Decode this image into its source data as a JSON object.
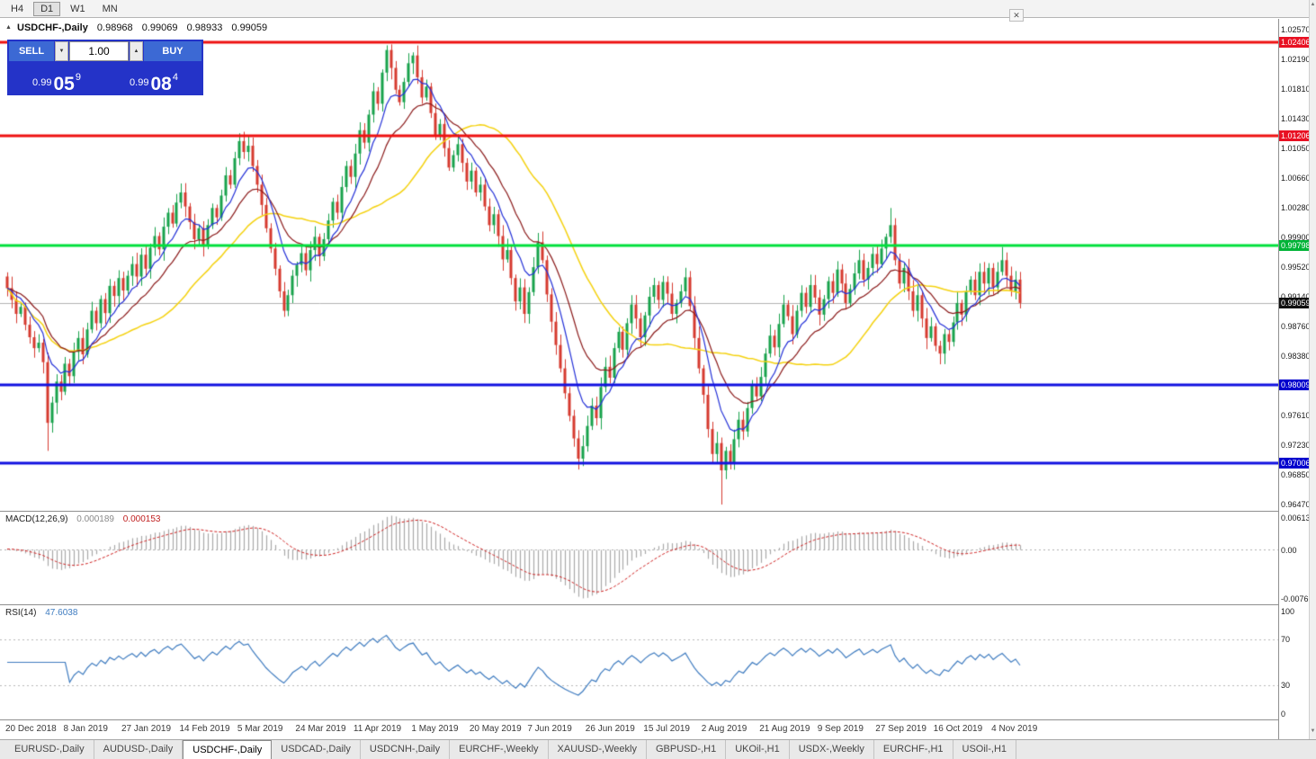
{
  "icons": {
    "collapse_arrow": "▲",
    "close": "✕",
    "step_up": "▲",
    "step_down": "▼",
    "scroll_up": "▲",
    "scroll_down": "▼"
  },
  "toolbar": {
    "timeframes": [
      "H4",
      "D1",
      "W1",
      "MN"
    ],
    "active": "D1"
  },
  "window": {
    "symbol": "USDCHF-,Daily",
    "open": "0.98968",
    "high": "0.99069",
    "low": "0.98933",
    "close": "0.99059"
  },
  "one_click": {
    "volume": "1.00",
    "sell": {
      "label": "SELL",
      "price_small": "0.99",
      "price_big": "05",
      "price_sup": "9"
    },
    "buy": {
      "label": "BUY",
      "price_small": "0.99",
      "price_big": "08",
      "price_sup": "4"
    }
  },
  "indicators": {
    "macd": {
      "label": "MACD(12,26,9)",
      "value_main": "0.000189",
      "value_signal": "0.000153",
      "axis_top": "0.00613",
      "axis_zero": "0.00",
      "axis_bottom": "-0.00761"
    },
    "rsi": {
      "label": "RSI(14)",
      "value": "47.6038",
      "axis": [
        "100",
        "70",
        "30",
        "0"
      ]
    }
  },
  "tabs": {
    "active_index": 2,
    "items": [
      "EURUSD-,Daily",
      "AUDUSD-,Daily",
      "USDCHF-,Daily",
      "USDCAD-,Daily",
      "USDCNH-,Daily",
      "EURCHF-,Weekly",
      "XAUUSD-,Weekly",
      "GBPUSD-,H1",
      "UKOil-,H1",
      "USDX-,Weekly",
      "EURCHF-,H1",
      "USOil-,H1"
    ]
  },
  "chart_data": {
    "type": "candlestick",
    "symbol": "USDCHF",
    "timeframe": "Daily",
    "ylim": [
      0.9639,
      1.0271
    ],
    "price_ticks": [
      "1.02570",
      "1.02190",
      "1.01810",
      "1.01430",
      "1.01050",
      "1.00660",
      "1.00280",
      "0.99900",
      "0.99520",
      "0.99140",
      "0.98760",
      "0.98380",
      "0.97610",
      "0.97230",
      "0.96850",
      "0.96470"
    ],
    "current_price": 0.99059,
    "current_price_label": "0.99059",
    "hlines": [
      {
        "price": 1.02406,
        "label": "1.02406",
        "line": "#ee1111",
        "box": "#e81123"
      },
      {
        "price": 1.01206,
        "label": "1.01206",
        "line": "#ee1111",
        "box": "#e81123"
      },
      {
        "price": 0.99798,
        "label": "0.99798",
        "line": "#00e03c",
        "box": "#00b437"
      },
      {
        "price": 0.98009,
        "label": "0.98009",
        "line": "#1212e0",
        "box": "#0000cd"
      },
      {
        "price": 0.97006,
        "label": "0.97006",
        "line": "#1212e0",
        "box": "#0000cd"
      }
    ],
    "first_open": 0.994,
    "closes": [
      0.9925,
      0.991,
      0.9892,
      0.9901,
      0.9878,
      0.9862,
      0.9848,
      0.9855,
      0.983,
      0.9752,
      0.9778,
      0.9805,
      0.9792,
      0.9828,
      0.9812,
      0.9843,
      0.9861,
      0.984,
      0.9872,
      0.9896,
      0.988,
      0.9911,
      0.9893,
      0.9928,
      0.9915,
      0.9938,
      0.9922,
      0.9941,
      0.9956,
      0.994,
      0.9968,
      0.995,
      0.9977,
      0.9992,
      0.9975,
      1.0004,
      1.0022,
      1.0008,
      1.0035,
      1.0048,
      1.003,
      1.001,
      0.9988,
      1.0002,
      0.998,
      1.0006,
      1.0028,
      1.0016,
      1.0044,
      1.007,
      1.0058,
      1.0092,
      1.0114,
      1.01,
      1.0108,
      1.0082,
      1.0058,
      1.0032,
      1.0002,
      0.9976,
      0.995,
      0.9921,
      0.9896,
      0.9916,
      0.9941,
      0.9955,
      0.997,
      0.9948,
      0.9974,
      0.9991,
      0.9966,
      0.9988,
      1.0012,
      1.0036,
      1.0022,
      1.0055,
      1.0082,
      1.0068,
      1.0098,
      1.0128,
      1.0112,
      1.0148,
      1.0178,
      1.0162,
      1.0202,
      1.0231,
      1.0208,
      1.018,
      1.0164,
      1.019,
      1.0214,
      1.0224,
      1.0196,
      1.017,
      1.0184,
      1.015,
      1.0121,
      1.0136,
      1.0105,
      1.008,
      1.0096,
      1.011,
      1.0086,
      1.0062,
      1.0076,
      1.0048,
      1.0058,
      1.003,
      1.0006,
      1.002,
      0.9992,
      0.9962,
      0.9974,
      0.9938,
      0.9908,
      0.9926,
      0.9892,
      0.992,
      0.9952,
      0.9984,
      0.9961,
      0.9917,
      0.9882,
      0.9852,
      0.9822,
      0.979,
      0.9761,
      0.9732,
      0.9706,
      0.9722,
      0.9748,
      0.9774,
      0.9758,
      0.9798,
      0.9824,
      0.981,
      0.9848,
      0.9869,
      0.9846,
      0.988,
      0.9904,
      0.9886,
      0.9862,
      0.989,
      0.9914,
      0.9929,
      0.991,
      0.9933,
      0.9918,
      0.9892,
      0.9906,
      0.9921,
      0.9939,
      0.9902,
      0.9861,
      0.9822,
      0.9788,
      0.9744,
      0.9712,
      0.9726,
      0.9691,
      0.9716,
      0.9701,
      0.9731,
      0.9756,
      0.9741,
      0.9771,
      0.9801,
      0.9786,
      0.9811,
      0.9841,
      0.9864,
      0.9849,
      0.9879,
      0.9904,
      0.9889,
      0.9866,
      0.9896,
      0.9919,
      0.9901,
      0.9929,
      0.9913,
      0.9891,
      0.9911,
      0.9934,
      0.9919,
      0.9949,
      0.9931,
      0.9906,
      0.9924,
      0.9944,
      0.9961,
      0.9936,
      0.9951,
      0.9969,
      0.9956,
      0.9976,
      0.9991,
      1.0006,
      0.9961,
      0.9931,
      0.9951,
      0.9921,
      0.9896,
      0.9916,
      0.9886,
      0.9861,
      0.9876,
      0.9851,
      0.9841,
      0.9866,
      0.9856,
      0.9881,
      0.9906,
      0.9891,
      0.9921,
      0.9936,
      0.9916,
      0.9946,
      0.9931,
      0.9951,
      0.9926,
      0.9946,
      0.9961,
      0.9941,
      0.9921,
      0.9936,
      0.9906
    ],
    "wick_overrides": {
      "9": {
        "low": 0.9716
      },
      "52": {
        "high": 1.0124
      },
      "85": {
        "high": 1.0237
      },
      "91": {
        "high": 1.0228
      },
      "119": {
        "high": 0.9996
      },
      "128": {
        "low": 0.9692
      },
      "160": {
        "low": 0.9647
      },
      "198": {
        "high": 1.0028
      },
      "223": {
        "high": 0.9978
      }
    },
    "ma": [
      {
        "period": 32,
        "method": "sma",
        "color": "#f5d20f",
        "width": 1.5
      },
      {
        "period": 17,
        "method": "ema",
        "color": "#8b1a1a",
        "width": 1.2
      },
      {
        "period": 8,
        "method": "ema",
        "color": "#2431d8",
        "width": 1.2
      }
    ],
    "macd": {
      "fast": 12,
      "slow": 26,
      "signal": 9,
      "hist_color": "#a9a9a9",
      "signal_color": "#d02020"
    },
    "rsi": {
      "period": 14,
      "color": "#3f7cc0",
      "levels": [
        70,
        30
      ]
    },
    "date_ticks": [
      {
        "i": 0,
        "label": "20 Dec 2018"
      },
      {
        "i": 13,
        "label": "8 Jan 2019"
      },
      {
        "i": 26,
        "label": "27 Jan 2019"
      },
      {
        "i": 39,
        "label": "14 Feb 2019"
      },
      {
        "i": 52,
        "label": "5 Mar 2019"
      },
      {
        "i": 65,
        "label": "24 Mar 2019"
      },
      {
        "i": 78,
        "label": "11 Apr 2019"
      },
      {
        "i": 91,
        "label": "1 May 2019"
      },
      {
        "i": 104,
        "label": "20 May 2019"
      },
      {
        "i": 117,
        "label": "7 Jun 2019"
      },
      {
        "i": 130,
        "label": "26 Jun 2019"
      },
      {
        "i": 143,
        "label": "15 Jul 2019"
      },
      {
        "i": 156,
        "label": "2 Aug 2019"
      },
      {
        "i": 169,
        "label": "21 Aug 2019"
      },
      {
        "i": 182,
        "label": "9 Sep 2019"
      },
      {
        "i": 195,
        "label": "27 Sep 2019"
      },
      {
        "i": 208,
        "label": "16 Oct 2019"
      },
      {
        "i": 221,
        "label": "4 Nov 2019"
      }
    ]
  },
  "colors": {
    "candle_up": "#18a24c",
    "candle_down": "#d63a2f",
    "bid_line": "#b4b4b4",
    "current_box": "#101010"
  }
}
